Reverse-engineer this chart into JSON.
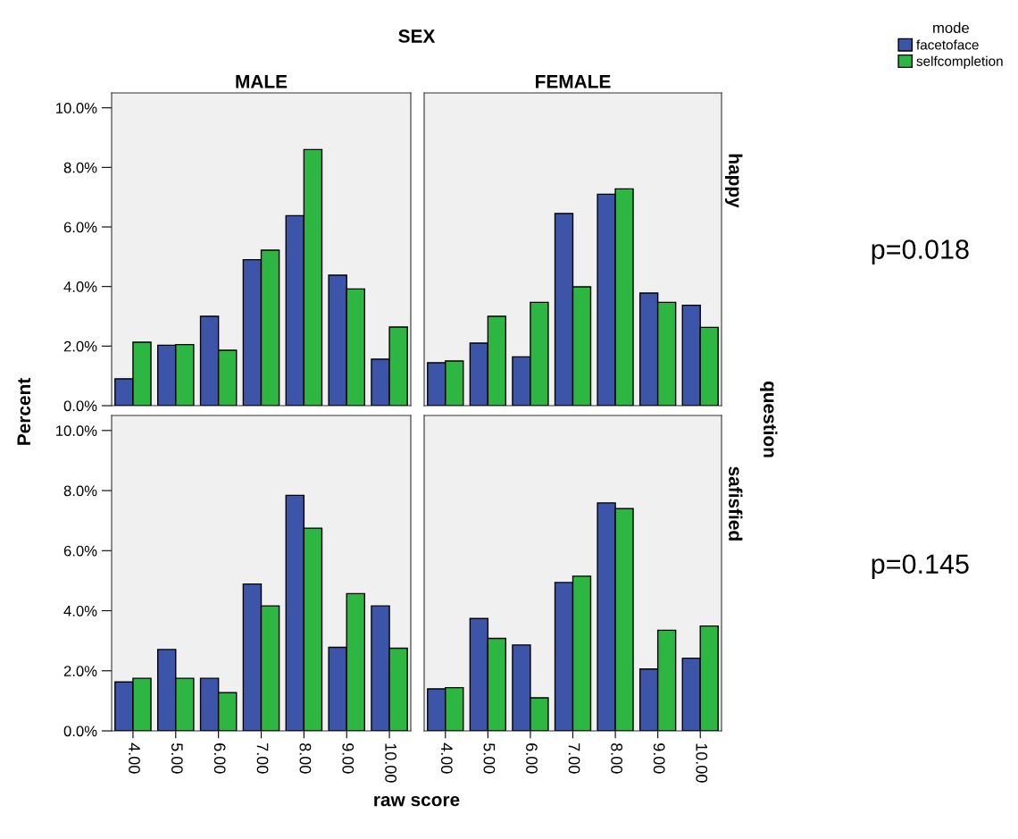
{
  "chart_data": [
    {
      "type": "bar",
      "title": "MALE",
      "ylabel": "Percent",
      "legend_title": "mode",
      "legend": "top right",
      "annotations": [
        "SEX"
      ],
      "categories": [
        "4.00",
        "5.00",
        "6.00",
        "7.00",
        "8.00",
        "9.00",
        "10.00"
      ],
      "ylim": [
        0,
        10.5
      ],
      "yticks": [
        {
          "value": 0,
          "label": "0.0%"
        },
        {
          "value": 2,
          "label": "2.0%"
        },
        {
          "value": 4,
          "label": "4.0%"
        },
        {
          "value": 6,
          "label": "6.0%"
        },
        {
          "value": 8,
          "label": "8.0%"
        },
        {
          "value": 10,
          "label": "10.0%"
        }
      ],
      "tick_labels": "y",
      "series": [
        {
          "name": "facetoface",
          "color": "#3c55a8",
          "values": [
            0.9,
            2.03,
            3.0,
            4.9,
            6.38,
            4.38,
            1.56
          ]
        },
        {
          "name": "selfcompletion",
          "color": "#2db742",
          "values": [
            2.13,
            2.05,
            1.86,
            5.22,
            8.6,
            3.92,
            2.64
          ]
        }
      ]
    },
    {
      "type": "bar",
      "title": "FEMALE",
      "y2label": "happy",
      "annotations": [
        "question",
        "p=0.018"
      ],
      "categories": [
        "4.00",
        "5.00",
        "6.00",
        "7.00",
        "8.00",
        "9.00",
        "10.00"
      ],
      "ylim": [
        0,
        10.5
      ],
      "tick_labels": false,
      "series": [
        {
          "color": "#3c55a8",
          "values": [
            1.44,
            2.1,
            1.64,
            6.45,
            7.1,
            3.78,
            3.37
          ]
        },
        {
          "color": "#2db742",
          "values": [
            1.5,
            3.0,
            3.47,
            3.99,
            7.28,
            3.47,
            2.63
          ]
        }
      ]
    },
    {
      "type": "bar",
      "xlabel": "raw score",
      "categories": [
        "4.00",
        "5.00",
        "6.00",
        "7.00",
        "8.00",
        "9.00",
        "10.00"
      ],
      "ylim": [
        0,
        10.5
      ],
      "yticks": [
        {
          "value": 0,
          "label": "0.0%"
        },
        {
          "value": 2,
          "label": "2.0%"
        },
        {
          "value": 4,
          "label": "4.0%"
        },
        {
          "value": 6,
          "label": "6.0%"
        },
        {
          "value": 8,
          "label": "8.0%"
        },
        {
          "value": 10,
          "label": "10.0%"
        }
      ],
      "series": [
        {
          "color": "#3c55a8",
          "values": [
            1.63,
            2.71,
            1.75,
            4.89,
            7.84,
            2.78,
            4.16
          ]
        },
        {
          "color": "#2db742",
          "values": [
            1.75,
            1.75,
            1.27,
            4.16,
            6.75,
            4.57,
            2.75
          ]
        }
      ]
    },
    {
      "type": "bar",
      "y2label": "safisfied",
      "annotations": [
        "p=0.145"
      ],
      "categories": [
        "4.00",
        "5.00",
        "6.00",
        "7.00",
        "8.00",
        "9.00",
        "10.00"
      ],
      "ylim": [
        0,
        10.5
      ],
      "tick_labels": "x",
      "series": [
        {
          "color": "#3c55a8",
          "values": [
            1.4,
            3.74,
            2.86,
            4.94,
            7.59,
            2.06,
            2.42
          ]
        },
        {
          "color": "#2db742",
          "values": [
            1.44,
            3.08,
            1.1,
            5.15,
            7.4,
            3.35,
            3.49
          ]
        }
      ]
    }
  ]
}
